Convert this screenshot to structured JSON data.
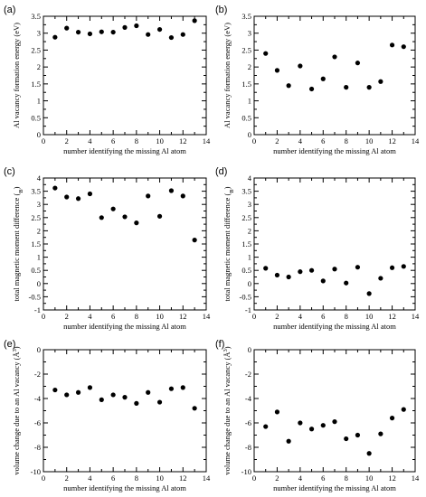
{
  "chart_data": [
    {
      "panel": "(a)",
      "type": "scatter",
      "xlabel": "number identifying the missing Al atom",
      "ylabel": "Al vacancy formation energy (eV)",
      "xlim": [
        0,
        14
      ],
      "ylim": [
        0,
        3.5
      ],
      "xticks": [
        0,
        2,
        4,
        6,
        8,
        10,
        12,
        14
      ],
      "yticks": [
        0,
        0.5,
        1,
        1.5,
        2,
        2.5,
        3,
        3.5
      ],
      "ytick_labels": [
        "0",
        "0.5",
        "1",
        "1.5",
        "2",
        "2.5",
        "3",
        "3.5"
      ],
      "grid": false,
      "x": [
        1,
        2,
        3,
        4,
        5,
        6,
        7,
        8,
        9,
        10,
        11,
        12,
        13
      ],
      "y": [
        2.88,
        3.15,
        3.03,
        2.98,
        3.04,
        3.03,
        3.17,
        3.22,
        2.96,
        3.11,
        2.87,
        2.96,
        3.37
      ]
    },
    {
      "panel": "(b)",
      "type": "scatter",
      "xlabel": "number identifying the missing Al atom",
      "ylabel": "Al vacancy formation energy (eV)",
      "xlim": [
        0,
        14
      ],
      "ylim": [
        0,
        3.5
      ],
      "xticks": [
        0,
        2,
        4,
        6,
        8,
        10,
        12,
        14
      ],
      "yticks": [
        0,
        0.5,
        1,
        1.5,
        2,
        2.5,
        3,
        3.5
      ],
      "ytick_labels": [
        "0",
        "0.5",
        "1",
        "1.5",
        "2",
        "2.5",
        "3",
        "3.5"
      ],
      "grid": false,
      "x": [
        1,
        2,
        3,
        4,
        5,
        6,
        7,
        8,
        9,
        10,
        11,
        12,
        13
      ],
      "y": [
        2.4,
        1.9,
        1.45,
        2.03,
        1.35,
        1.65,
        2.3,
        1.4,
        2.12,
        1.4,
        1.57,
        2.65,
        2.6
      ]
    },
    {
      "panel": "(c)",
      "type": "scatter",
      "xlabel": "number identifying the missing Al atom",
      "ylabel": "total magnetic moment difference (μB)",
      "xlim": [
        0,
        14
      ],
      "ylim": [
        -1,
        4
      ],
      "xticks": [
        0,
        2,
        4,
        6,
        8,
        10,
        12,
        14
      ],
      "yticks": [
        -1,
        -0.5,
        0,
        0.5,
        1,
        1.5,
        2,
        2.5,
        3,
        3.5,
        4
      ],
      "ytick_labels": [
        "-1",
        "-0.5",
        "0",
        "0.5",
        "1",
        "1.5",
        "2",
        "2.5",
        "3",
        "3.5",
        "4"
      ],
      "grid": false,
      "x": [
        1,
        2,
        3,
        4,
        5,
        6,
        7,
        8,
        9,
        10,
        11,
        12,
        13
      ],
      "y": [
        3.62,
        3.28,
        3.22,
        3.4,
        2.5,
        2.83,
        2.53,
        2.3,
        3.32,
        2.55,
        3.52,
        3.32,
        1.65
      ]
    },
    {
      "panel": "(d)",
      "type": "scatter",
      "xlabel": "number identifying the missing Al atom",
      "ylabel": "total magnetic moment difference (μB)",
      "xlim": [
        0,
        14
      ],
      "ylim": [
        -1,
        4
      ],
      "xticks": [
        0,
        2,
        4,
        6,
        8,
        10,
        12,
        14
      ],
      "yticks": [
        -1,
        -0.5,
        0,
        0.5,
        1,
        1.5,
        2,
        2.5,
        3,
        3.5,
        4
      ],
      "ytick_labels": [
        "-1",
        "-0.5",
        "0",
        "0.5",
        "1",
        "1.5",
        "2",
        "2.5",
        "3",
        "3.5",
        "4"
      ],
      "grid": false,
      "x": [
        1,
        2,
        3,
        4,
        5,
        6,
        7,
        8,
        9,
        10,
        11,
        12,
        13
      ],
      "y": [
        0.58,
        0.32,
        0.25,
        0.45,
        0.5,
        0.1,
        0.55,
        0.02,
        0.62,
        -0.38,
        0.2,
        0.6,
        0.65
      ]
    },
    {
      "panel": "(e)",
      "type": "scatter",
      "xlabel": "number identifying the missing Al atom",
      "ylabel": "volume change due to an Al vacancy (Å3)",
      "xlim": [
        0,
        14
      ],
      "ylim": [
        -10,
        0
      ],
      "xticks": [
        0,
        2,
        4,
        6,
        8,
        10,
        12,
        14
      ],
      "yticks": [
        -10,
        -8,
        -6,
        -4,
        -2,
        0
      ],
      "ytick_labels": [
        "-10",
        "-8",
        "-6",
        "-4",
        "-2",
        "0"
      ],
      "grid": false,
      "x": [
        1,
        2,
        3,
        4,
        5,
        6,
        7,
        8,
        9,
        10,
        11,
        12,
        13
      ],
      "y": [
        -3.3,
        -3.7,
        -3.5,
        -3.1,
        -4.1,
        -3.7,
        -3.9,
        -4.4,
        -3.5,
        -4.3,
        -3.2,
        -3.1,
        -4.8
      ]
    },
    {
      "panel": "(f)",
      "type": "scatter",
      "xlabel": "number identifying the missing Al atom",
      "ylabel": "volume change due to an Al vacancy (Å3)",
      "xlim": [
        0,
        14
      ],
      "ylim": [
        -10,
        0
      ],
      "xticks": [
        0,
        2,
        4,
        6,
        8,
        10,
        12,
        14
      ],
      "yticks": [
        -10,
        -8,
        -6,
        -4,
        -2,
        0
      ],
      "ytick_labels": [
        "-10",
        "-8",
        "-6",
        "-4",
        "-2",
        "0"
      ],
      "grid": false,
      "x": [
        1,
        2,
        3,
        4,
        5,
        6,
        7,
        8,
        9,
        10,
        11,
        12,
        13
      ],
      "y": [
        -6.3,
        -5.1,
        -7.5,
        -6.0,
        -6.5,
        -6.2,
        -5.9,
        -7.3,
        -7.0,
        -8.5,
        -6.9,
        -5.6,
        -4.9
      ]
    }
  ]
}
